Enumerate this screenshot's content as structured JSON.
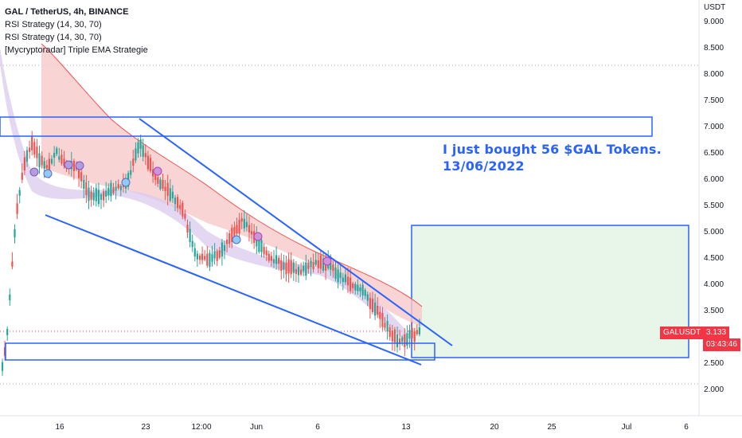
{
  "header": {
    "title": "GAL / TetherUS, 4h, BINANCE",
    "indicators": [
      "RSI Strategy (14, 30, 70)",
      "RSI Strategy (14, 30, 70)",
      "[Mycryptoradar] Triple EMA Strategie"
    ]
  },
  "price_scale": {
    "currency": "USDT",
    "ticks": [
      "9.000",
      "8.500",
      "8.000",
      "7.500",
      "7.000",
      "6.500",
      "6.000",
      "5.500",
      "5.000",
      "4.500",
      "4.000",
      "3.500",
      "3.000",
      "2.500",
      "2.000"
    ]
  },
  "time_scale": {
    "ticks": [
      "16",
      "23",
      "12:00",
      "Jun",
      "6",
      "13",
      "20",
      "25",
      "Jul",
      "6"
    ]
  },
  "annotation": {
    "line1": "I just bought 56 $GAL Tokens.",
    "line2": "13/06/2022"
  },
  "last_price": {
    "symbol": "GALUSDT",
    "price": "3.133",
    "countdown": "03:43:46"
  },
  "colors": {
    "up": "#26a69a",
    "down": "#ef5350",
    "drawing": "#2962ff",
    "zone_fill": "#e8f5e9",
    "ema_fill": "#f8c9c9",
    "ema_fill2": "#d9c9ee"
  }
}
